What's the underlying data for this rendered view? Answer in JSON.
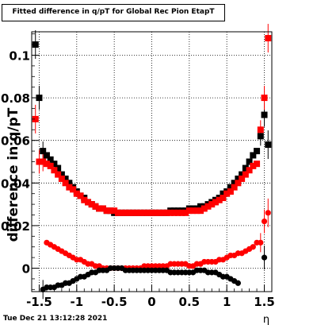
{
  "chart_data": {
    "type": "scatter",
    "title": "Fitted difference in q/pT for Global Rec Pion EtapT",
    "xlabel": "η",
    "ylabel": "difference in q/pT",
    "xlim": [
      -1.6,
      1.6
    ],
    "ylim": [
      -0.011,
      0.111
    ],
    "x_ticks": [
      "-1.5",
      "-1",
      "-0.5",
      "0",
      "0.5",
      "1",
      "1.5"
    ],
    "y_ticks": [
      "0",
      "0.02",
      "0.04",
      "0.06",
      "0.08",
      "0.1"
    ],
    "grid": true,
    "series": [
      {
        "color": "#000000",
        "marker": "square",
        "x": [
          -1.55,
          -1.5,
          -1.45,
          -1.4,
          -1.35,
          -1.3,
          -1.25,
          -1.2,
          -1.15,
          -1.1,
          -1.05,
          -1.0,
          -0.95,
          -0.9,
          -0.85,
          -0.8,
          -0.75,
          -0.7,
          -0.65,
          -0.6,
          -0.55,
          -0.5,
          -0.45,
          -0.4,
          -0.35,
          -0.3,
          -0.25,
          -0.2,
          -0.15,
          -0.1,
          -0.05,
          0.0,
          0.05,
          0.1,
          0.15,
          0.2,
          0.25,
          0.3,
          0.35,
          0.4,
          0.45,
          0.5,
          0.55,
          0.6,
          0.65,
          0.7,
          0.75,
          0.8,
          0.85,
          0.9,
          0.95,
          1.0,
          1.05,
          1.1,
          1.15,
          1.2,
          1.25,
          1.3,
          1.35,
          1.4,
          1.45,
          1.5,
          1.55
        ],
        "y": [
          0.105,
          0.08,
          0.055,
          0.053,
          0.051,
          0.049,
          0.047,
          0.044,
          0.042,
          0.04,
          0.038,
          0.036,
          0.034,
          0.033,
          0.031,
          0.03,
          0.029,
          0.028,
          0.028,
          0.027,
          0.027,
          0.026,
          0.026,
          0.026,
          0.026,
          0.026,
          0.026,
          0.026,
          0.026,
          0.026,
          0.026,
          0.026,
          0.026,
          0.026,
          0.026,
          0.026,
          0.027,
          0.027,
          0.027,
          0.027,
          0.027,
          0.028,
          0.028,
          0.028,
          0.029,
          0.029,
          0.03,
          0.031,
          0.032,
          0.033,
          0.035,
          0.036,
          0.038,
          0.04,
          0.042,
          0.044,
          0.047,
          0.05,
          0.053,
          0.055,
          0.062,
          0.072,
          0.058
        ]
      },
      {
        "color": "#ff0000",
        "marker": "square",
        "x": [
          -1.55,
          -1.5,
          -1.45,
          -1.4,
          -1.35,
          -1.3,
          -1.25,
          -1.2,
          -1.15,
          -1.1,
          -1.05,
          -1.0,
          -0.95,
          -0.9,
          -0.85,
          -0.8,
          -0.75,
          -0.7,
          -0.65,
          -0.6,
          -0.55,
          -0.5,
          -0.45,
          -0.4,
          -0.35,
          -0.3,
          -0.25,
          -0.2,
          -0.15,
          -0.1,
          -0.05,
          0.0,
          0.05,
          0.1,
          0.15,
          0.2,
          0.25,
          0.3,
          0.35,
          0.4,
          0.45,
          0.5,
          0.55,
          0.6,
          0.65,
          0.7,
          0.75,
          0.8,
          0.85,
          0.9,
          0.95,
          1.0,
          1.05,
          1.1,
          1.15,
          1.2,
          1.25,
          1.3,
          1.35,
          1.4,
          1.45,
          1.5,
          1.55
        ],
        "y": [
          0.07,
          0.05,
          0.05,
          0.049,
          0.048,
          0.046,
          0.044,
          0.042,
          0.04,
          0.038,
          0.037,
          0.035,
          0.034,
          0.032,
          0.031,
          0.03,
          0.029,
          0.028,
          0.028,
          0.027,
          0.027,
          0.027,
          0.026,
          0.026,
          0.026,
          0.026,
          0.026,
          0.026,
          0.026,
          0.026,
          0.026,
          0.026,
          0.026,
          0.026,
          0.026,
          0.026,
          0.026,
          0.026,
          0.026,
          0.026,
          0.026,
          0.027,
          0.027,
          0.027,
          0.027,
          0.028,
          0.029,
          0.03,
          0.031,
          0.032,
          0.033,
          0.035,
          0.036,
          0.038,
          0.04,
          0.042,
          0.044,
          0.046,
          0.048,
          0.049,
          0.065,
          0.08,
          0.108
        ]
      },
      {
        "color": "#ff0000",
        "marker": "circle",
        "x": [
          -1.4,
          -1.35,
          -1.3,
          -1.25,
          -1.2,
          -1.15,
          -1.1,
          -1.05,
          -1.0,
          -0.95,
          -0.9,
          -0.85,
          -0.8,
          -0.75,
          -0.7,
          -0.65,
          -0.6,
          -0.55,
          -0.5,
          -0.45,
          -0.4,
          -0.35,
          -0.3,
          -0.25,
          -0.2,
          -0.15,
          -0.1,
          -0.05,
          0.0,
          0.05,
          0.1,
          0.15,
          0.2,
          0.25,
          0.3,
          0.35,
          0.4,
          0.45,
          0.5,
          0.55,
          0.6,
          0.65,
          0.7,
          0.75,
          0.8,
          0.85,
          0.9,
          0.95,
          1.0,
          1.05,
          1.1,
          1.15,
          1.2,
          1.25,
          1.3,
          1.35,
          1.4,
          1.45,
          1.5,
          1.55
        ],
        "y": [
          0.012,
          0.011,
          0.01,
          0.009,
          0.008,
          0.007,
          0.006,
          0.005,
          0.004,
          0.004,
          0.003,
          0.002,
          0.002,
          0.001,
          0.001,
          0.0,
          0.0,
          0.0,
          0.0,
          0.0,
          0.0,
          0.0,
          0.0,
          0.0,
          0.0,
          0.0,
          0.001,
          0.001,
          0.001,
          0.001,
          0.001,
          0.001,
          0.001,
          0.002,
          0.002,
          0.002,
          0.002,
          0.002,
          0.001,
          0.001,
          0.002,
          0.002,
          0.003,
          0.003,
          0.003,
          0.003,
          0.004,
          0.004,
          0.005,
          0.006,
          0.006,
          0.007,
          0.007,
          0.008,
          0.009,
          0.01,
          0.012,
          0.012,
          0.022,
          0.026
        ]
      },
      {
        "color": "#000000",
        "marker": "circle",
        "x": [
          -1.45,
          -1.4,
          -1.35,
          -1.3,
          -1.25,
          -1.2,
          -1.15,
          -1.1,
          -1.05,
          -1.0,
          -0.95,
          -0.9,
          -0.85,
          -0.8,
          -0.75,
          -0.7,
          -0.65,
          -0.6,
          -0.55,
          -0.5,
          -0.45,
          -0.4,
          -0.35,
          -0.3,
          -0.25,
          -0.2,
          -0.15,
          -0.1,
          -0.05,
          0.0,
          0.05,
          0.1,
          0.15,
          0.2,
          0.25,
          0.3,
          0.35,
          0.4,
          0.45,
          0.5,
          0.55,
          0.6,
          0.65,
          0.7,
          0.75,
          0.8,
          0.85,
          0.9,
          0.95,
          1.0,
          1.05,
          1.1,
          1.15,
          1.5
        ],
        "y": [
          -0.01,
          -0.009,
          -0.009,
          -0.009,
          -0.008,
          -0.008,
          -0.007,
          -0.007,
          -0.006,
          -0.005,
          -0.004,
          -0.004,
          -0.003,
          -0.002,
          -0.002,
          -0.001,
          -0.001,
          -0.001,
          0.0,
          0.0,
          0.0,
          0.0,
          -0.001,
          -0.001,
          -0.001,
          -0.001,
          -0.001,
          -0.001,
          -0.001,
          -0.001,
          -0.001,
          -0.001,
          -0.001,
          -0.001,
          -0.002,
          -0.002,
          -0.002,
          -0.002,
          -0.002,
          -0.002,
          -0.002,
          -0.001,
          -0.001,
          -0.001,
          -0.002,
          -0.002,
          -0.002,
          -0.003,
          -0.004,
          -0.004,
          -0.005,
          -0.006,
          -0.007,
          0.005
        ]
      }
    ]
  },
  "timestamp": "Tue Dec 21 13:12:28 2021"
}
